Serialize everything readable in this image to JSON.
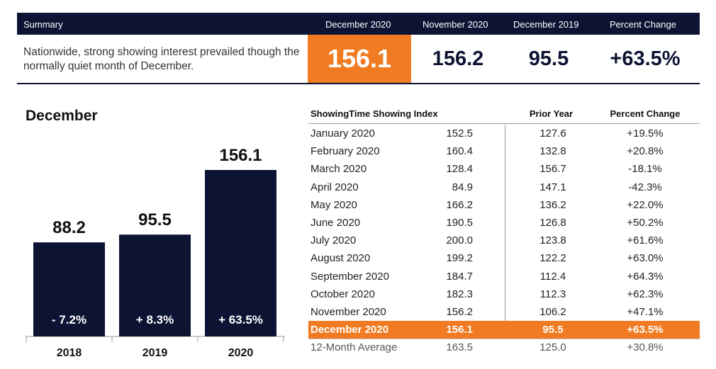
{
  "summary": {
    "header": {
      "label": "Summary",
      "col1": "December 2020",
      "col2": "November 2020",
      "col3": "December 2019",
      "col4": "Percent Change"
    },
    "text": "Nationwide, strong showing interest prevailed though the normally quiet month of December.",
    "values": {
      "current": "156.1",
      "prev_month": "156.2",
      "prev_year": "95.5",
      "change": "+63.5%"
    }
  },
  "chart_data": {
    "type": "bar",
    "title": "December",
    "categories": [
      "2018",
      "2019",
      "2020"
    ],
    "values": [
      88.2,
      95.5,
      156.1
    ],
    "value_labels": [
      "88.2",
      "95.5",
      "156.1"
    ],
    "change_labels": [
      "- 7.2%",
      "+ 8.3%",
      "+ 63.5%"
    ],
    "ylim": [
      0,
      175
    ],
    "bar_color": "#0d1333"
  },
  "table": {
    "headers": {
      "index": "ShowingTime Showing Index",
      "prior": "Prior Year",
      "change": "Percent Change"
    },
    "rows": [
      {
        "month": "January 2020",
        "value": "152.5",
        "prior": "127.6",
        "change": "+19.5%"
      },
      {
        "month": "February 2020",
        "value": "160.4",
        "prior": "132.8",
        "change": "+20.8%"
      },
      {
        "month": "March 2020",
        "value": "128.4",
        "prior": "156.7",
        "change": "-18.1%"
      },
      {
        "month": "April 2020",
        "value": "84.9",
        "prior": "147.1",
        "change": "-42.3%"
      },
      {
        "month": "May 2020",
        "value": "166.2",
        "prior": "136.2",
        "change": "+22.0%"
      },
      {
        "month": "June 2020",
        "value": "190.5",
        "prior": "126.8",
        "change": "+50.2%"
      },
      {
        "month": "July 2020",
        "value": "200.0",
        "prior": "123.8",
        "change": "+61.6%"
      },
      {
        "month": "August 2020",
        "value": "199.2",
        "prior": "122.2",
        "change": "+63.0%"
      },
      {
        "month": "September 2020",
        "value": "184.7",
        "prior": "112.4",
        "change": "+64.3%"
      },
      {
        "month": "October 2020",
        "value": "182.3",
        "prior": "112.3",
        "change": "+62.3%"
      },
      {
        "month": "November 2020",
        "value": "156.2",
        "prior": "106.2",
        "change": "+47.1%"
      },
      {
        "month": "December 2020",
        "value": "156.1",
        "prior": "95.5",
        "change": "+63.5%"
      }
    ],
    "average": {
      "month": "12-Month Average",
      "value": "163.5",
      "prior": "125.0",
      "change": "+30.8%"
    }
  },
  "colors": {
    "navy": "#0d1333",
    "orange": "#f07b22"
  }
}
